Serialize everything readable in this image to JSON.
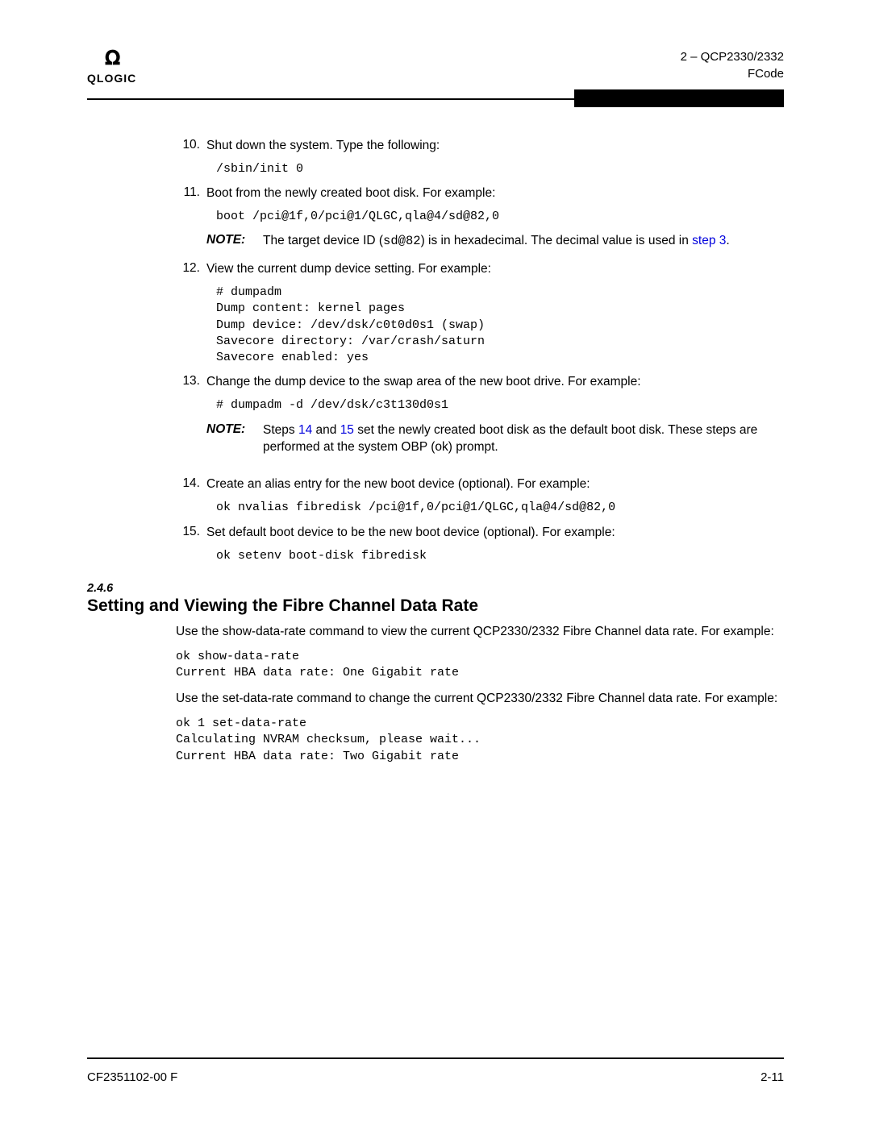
{
  "header": {
    "logo_symbol": "Ↄↂ",
    "logo_text": "QLOGIC",
    "right_line1": "2 – QCP2330/2332",
    "right_line2": "FCode"
  },
  "items": {
    "n10": "10.",
    "t10": "Shut down the system. Type the following:",
    "c10": "/sbin/init 0",
    "n11": "11.",
    "t11": "Boot from the newly created boot disk. For example:",
    "c11": "boot /pci@1f,0/pci@1/QLGC,qla@4/sd@82,0",
    "note1_label": "NOTE:",
    "note1_a": "The target device ID (",
    "note1_code": "sd@82",
    "note1_b": ") is in hexadecimal. The decimal value is used in ",
    "note1_link": "step 3",
    "note1_c": ".",
    "n12": "12.",
    "t12": "View the current dump device setting. For example:",
    "c12": "# dumpadm\nDump content: kernel pages\nDump device: /dev/dsk/c0t0d0s1 (swap)\nSavecore directory: /var/crash/saturn\nSavecore enabled: yes",
    "n13": "13.",
    "t13": "Change the dump device to the swap area of the new boot drive. For example:",
    "c13": "# dumpadm -d /dev/dsk/c3t130d0s1",
    "note2_label": "NOTE:",
    "note2_a": "Steps ",
    "note2_link1": "14",
    "note2_b": " and ",
    "note2_link2": "15",
    "note2_c": " set the newly created boot disk as the default boot disk. These steps are performed at the system OBP (ok) prompt.",
    "n14": "14.",
    "t14": "Create an alias entry for the new boot device (optional). For example:",
    "c14": "ok nvalias fibredisk /pci@1f,0/pci@1/QLGC,qla@4/sd@82,0",
    "n15": "15.",
    "t15": "Set default boot device to be the new boot device (optional). For example:",
    "c15": "ok setenv boot-disk fibredisk"
  },
  "section": {
    "num": "2.4.6",
    "title": "Setting and Viewing the Fibre Channel Data Rate",
    "p1": "Use the show-data-rate command to view the current QCP2330/2332 Fibre Channel data rate. For example:",
    "code1": "ok show-data-rate\nCurrent HBA data rate: One Gigabit rate",
    "p2": "Use the set-data-rate command to change the current QCP2330/2332 Fibre Channel data rate. For example:",
    "code2": "ok 1 set-data-rate\nCalculating NVRAM checksum, please wait...\nCurrent HBA data rate: Two Gigabit rate"
  },
  "footer": {
    "left": "CF2351102-00 F",
    "right": "2-11"
  }
}
